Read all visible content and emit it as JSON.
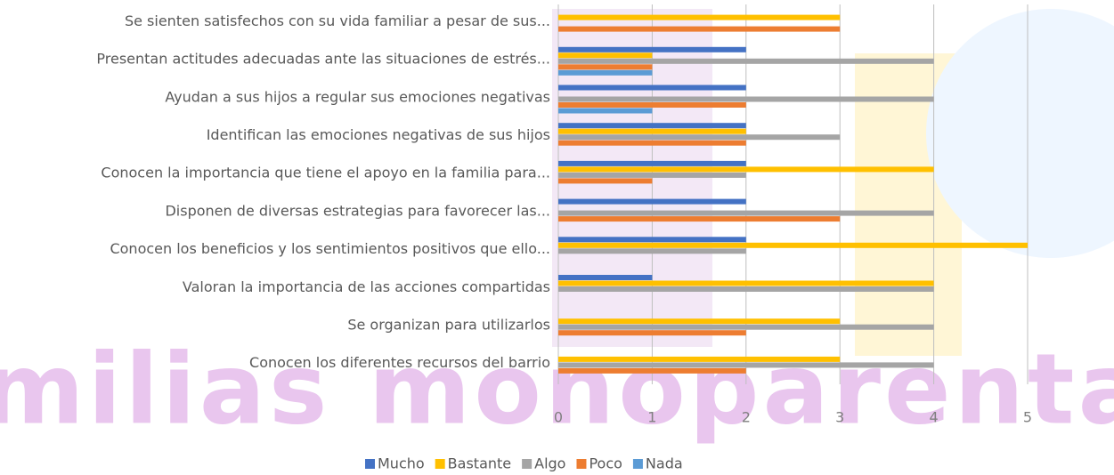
{
  "chart_data": {
    "type": "hbar",
    "watermark": "milias monoparental",
    "categories": [
      "Se sienten satisfechos con su vida familiar a pesar de sus...",
      "Presentan actitudes adecuadas ante las situaciones de estrés...",
      "Ayudan a sus hijos a regular sus emociones negativas",
      "Identifican las emociones negativas de sus hijos",
      "Conocen la importancia que tiene el apoyo en la familia para...",
      "Disponen de diversas estrategias para favorecer las...",
      "Conocen los beneficios y los sentimientos positivos que ello...",
      "Valoran la importancia de las acciones compartidas",
      "Se organizan para utilizarlos",
      "Conocen los diferentes recursos del barrio"
    ],
    "series": [
      {
        "name": "Mucho",
        "color": "#4472c4",
        "values": [
          0,
          2,
          2,
          2,
          2,
          2,
          2,
          1,
          0,
          0
        ]
      },
      {
        "name": "Bastante",
        "color": "#ffc000",
        "values": [
          3,
          1,
          0,
          2,
          4,
          0,
          5,
          4,
          3,
          3
        ]
      },
      {
        "name": "Algo",
        "color": "#a5a5a5",
        "values": [
          0,
          4,
          4,
          3,
          2,
          4,
          2,
          4,
          4,
          4
        ]
      },
      {
        "name": "Poco",
        "color": "#ed7d31",
        "values": [
          3,
          1,
          2,
          2,
          1,
          3,
          0,
          0,
          2,
          2
        ]
      },
      {
        "name": "Nada",
        "color": "#5b9bd5",
        "values": [
          0,
          1,
          1,
          0,
          0,
          0,
          0,
          0,
          0,
          0
        ]
      }
    ],
    "xlim": [
      0,
      5
    ],
    "xticks": [
      0,
      1,
      2,
      3,
      4,
      5
    ],
    "grid": true,
    "legend": "bottom"
  }
}
